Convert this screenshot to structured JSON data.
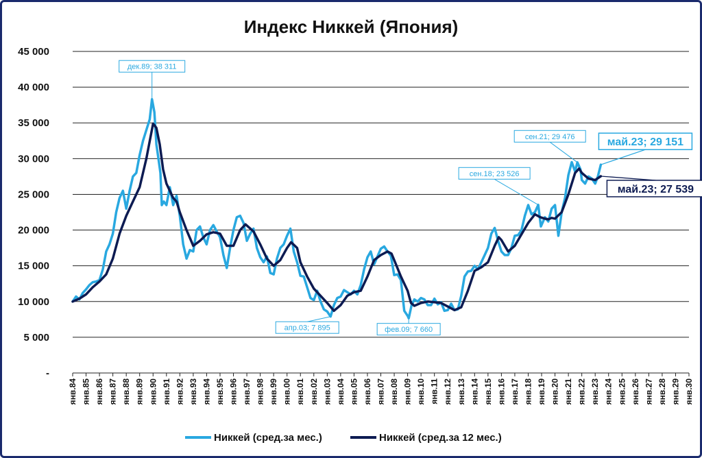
{
  "colors": {
    "monthly": "#29a8e0",
    "annual": "#0d1b52",
    "grid": "#222222",
    "frame": "#1a2a6c"
  },
  "chart_data": {
    "type": "line",
    "title": "Индекс Никкей (Япония)",
    "xlabel": "",
    "ylabel": "",
    "ylim": [
      0,
      45000
    ],
    "xlim": [
      1984,
      2030
    ],
    "yticks": [
      {
        "value": 0,
        "label": "-"
      },
      {
        "value": 5000,
        "label": "5 000"
      },
      {
        "value": 10000,
        "label": "10 000"
      },
      {
        "value": 15000,
        "label": "15 000"
      },
      {
        "value": 20000,
        "label": "20 000"
      },
      {
        "value": 25000,
        "label": "25 000"
      },
      {
        "value": 30000,
        "label": "30 000"
      },
      {
        "value": 35000,
        "label": "35 000"
      },
      {
        "value": 40000,
        "label": "40 000"
      },
      {
        "value": 45000,
        "label": "45 000"
      }
    ],
    "xticks": [
      "янв.84",
      "янв.85",
      "янв.86",
      "янв.87",
      "янв.88",
      "янв.89",
      "янв.90",
      "янв.91",
      "янв.92",
      "янв.93",
      "янв.94",
      "янв.95",
      "янв.96",
      "янв.97",
      "янв.98",
      "янв.99",
      "янв.00",
      "янв.01",
      "янв.02",
      "янв.03",
      "янв.04",
      "янв.05",
      "янв.06",
      "янв.07",
      "янв.08",
      "янв.09",
      "янв.10",
      "янв.11",
      "янв.12",
      "янв.13",
      "янв.14",
      "янв.15",
      "янв.16",
      "янв.17",
      "янв.18",
      "янв.19",
      "янв.20",
      "янв.21",
      "янв.22",
      "янв.23",
      "янв.24",
      "янв.25",
      "янв.26",
      "янв.27",
      "янв.28",
      "янв.29",
      "янв.30"
    ],
    "grid": true,
    "legend_position": "bottom",
    "series": [
      {
        "name": "Никкей (сред.за мес.)",
        "color": "#29a8e0",
        "points": [
          [
            1984.0,
            10000
          ],
          [
            1984.25,
            10700
          ],
          [
            1984.5,
            10300
          ],
          [
            1984.75,
            11200
          ],
          [
            1985.0,
            11700
          ],
          [
            1985.25,
            12300
          ],
          [
            1985.5,
            12700
          ],
          [
            1985.75,
            12800
          ],
          [
            1986.0,
            13000
          ],
          [
            1986.25,
            14500
          ],
          [
            1986.5,
            17000
          ],
          [
            1986.75,
            18000
          ],
          [
            1987.0,
            19500
          ],
          [
            1987.25,
            22500
          ],
          [
            1987.5,
            24500
          ],
          [
            1987.75,
            25500
          ],
          [
            1988.0,
            23000
          ],
          [
            1988.25,
            25500
          ],
          [
            1988.5,
            27500
          ],
          [
            1988.75,
            28000
          ],
          [
            1989.0,
            30500
          ],
          [
            1989.25,
            32500
          ],
          [
            1989.5,
            34000
          ],
          [
            1989.75,
            35500
          ],
          [
            1989.92,
            38311
          ],
          [
            1990.1,
            36500
          ],
          [
            1990.25,
            32000
          ],
          [
            1990.4,
            30000
          ],
          [
            1990.55,
            28000
          ],
          [
            1990.65,
            23500
          ],
          [
            1990.8,
            24000
          ],
          [
            1991.0,
            23500
          ],
          [
            1991.25,
            26000
          ],
          [
            1991.5,
            23500
          ],
          [
            1991.75,
            24800
          ],
          [
            1992.0,
            22000
          ],
          [
            1992.25,
            18000
          ],
          [
            1992.5,
            16000
          ],
          [
            1992.75,
            17200
          ],
          [
            1993.0,
            17000
          ],
          [
            1993.25,
            20000
          ],
          [
            1993.5,
            20500
          ],
          [
            1993.75,
            19000
          ],
          [
            1994.0,
            18000
          ],
          [
            1994.25,
            20000
          ],
          [
            1994.5,
            20700
          ],
          [
            1994.75,
            19800
          ],
          [
            1995.0,
            19000
          ],
          [
            1995.25,
            16500
          ],
          [
            1995.5,
            14700
          ],
          [
            1995.75,
            17500
          ],
          [
            1996.0,
            20000
          ],
          [
            1996.25,
            21800
          ],
          [
            1996.5,
            22000
          ],
          [
            1996.75,
            21000
          ],
          [
            1997.0,
            18500
          ],
          [
            1997.25,
            19500
          ],
          [
            1997.5,
            20200
          ],
          [
            1997.75,
            17500
          ],
          [
            1998.0,
            16200
          ],
          [
            1998.25,
            15500
          ],
          [
            1998.5,
            16300
          ],
          [
            1998.75,
            14000
          ],
          [
            1999.0,
            13800
          ],
          [
            1999.25,
            16000
          ],
          [
            1999.5,
            17500
          ],
          [
            1999.75,
            18000
          ],
          [
            2000.0,
            19200
          ],
          [
            2000.25,
            20200
          ],
          [
            2000.5,
            17000
          ],
          [
            2000.75,
            15500
          ],
          [
            2001.0,
            13600
          ],
          [
            2001.25,
            13500
          ],
          [
            2001.5,
            12000
          ],
          [
            2001.75,
            10500
          ],
          [
            2002.0,
            10200
          ],
          [
            2002.25,
            11500
          ],
          [
            2002.5,
            10000
          ],
          [
            2002.75,
            8900
          ],
          [
            2003.0,
            8600
          ],
          [
            2003.25,
            7895
          ],
          [
            2003.5,
            9500
          ],
          [
            2003.75,
            10500
          ],
          [
            2004.0,
            10700
          ],
          [
            2004.25,
            11600
          ],
          [
            2004.5,
            11300
          ],
          [
            2004.75,
            11000
          ],
          [
            2005.0,
            11500
          ],
          [
            2005.25,
            11000
          ],
          [
            2005.5,
            12300
          ],
          [
            2005.75,
            14500
          ],
          [
            2006.0,
            16200
          ],
          [
            2006.25,
            17000
          ],
          [
            2006.5,
            15200
          ],
          [
            2006.75,
            16300
          ],
          [
            2007.0,
            17400
          ],
          [
            2007.25,
            17700
          ],
          [
            2007.5,
            17000
          ],
          [
            2007.75,
            16400
          ],
          [
            2008.0,
            13700
          ],
          [
            2008.25,
            13800
          ],
          [
            2008.5,
            13000
          ],
          [
            2008.75,
            8700
          ],
          [
            2009.0,
            8000
          ],
          [
            2009.08,
            7660
          ],
          [
            2009.3,
            9500
          ],
          [
            2009.5,
            10300
          ],
          [
            2009.75,
            10000
          ],
          [
            2010.0,
            10500
          ],
          [
            2010.25,
            10300
          ],
          [
            2010.5,
            9500
          ],
          [
            2010.75,
            9500
          ],
          [
            2011.0,
            10400
          ],
          [
            2011.25,
            9600
          ],
          [
            2011.5,
            9900
          ],
          [
            2011.75,
            8700
          ],
          [
            2012.0,
            8800
          ],
          [
            2012.25,
            9700
          ],
          [
            2012.5,
            8800
          ],
          [
            2012.75,
            8900
          ],
          [
            2013.0,
            10800
          ],
          [
            2013.25,
            13500
          ],
          [
            2013.5,
            14200
          ],
          [
            2013.75,
            14300
          ],
          [
            2014.0,
            15000
          ],
          [
            2014.25,
            14500
          ],
          [
            2014.5,
            15500
          ],
          [
            2014.75,
            16500
          ],
          [
            2015.0,
            17500
          ],
          [
            2015.25,
            19500
          ],
          [
            2015.5,
            20300
          ],
          [
            2015.75,
            18500
          ],
          [
            2016.0,
            17000
          ],
          [
            2016.25,
            16500
          ],
          [
            2016.5,
            16500
          ],
          [
            2016.75,
            17500
          ],
          [
            2017.0,
            19200
          ],
          [
            2017.25,
            19300
          ],
          [
            2017.5,
            20000
          ],
          [
            2017.75,
            22000
          ],
          [
            2018.0,
            23500
          ],
          [
            2018.25,
            22200
          ],
          [
            2018.5,
            22500
          ],
          [
            2018.75,
            23526
          ],
          [
            2018.95,
            20500
          ],
          [
            2019.25,
            21800
          ],
          [
            2019.5,
            21200
          ],
          [
            2019.75,
            23000
          ],
          [
            2020.0,
            23500
          ],
          [
            2020.25,
            19200
          ],
          [
            2020.5,
            22500
          ],
          [
            2020.75,
            24500
          ],
          [
            2021.0,
            27700
          ],
          [
            2021.25,
            29500
          ],
          [
            2021.5,
            28200
          ],
          [
            2021.67,
            29476
          ],
          [
            2021.9,
            28500
          ],
          [
            2022.0,
            27000
          ],
          [
            2022.25,
            26500
          ],
          [
            2022.5,
            27500
          ],
          [
            2022.75,
            27200
          ],
          [
            2023.0,
            26500
          ],
          [
            2023.2,
            27500
          ],
          [
            2023.42,
            29151
          ]
        ]
      },
      {
        "name": "Никкей (сред.за 12 мес.)",
        "color": "#0d1b52",
        "points": [
          [
            1984.0,
            10000
          ],
          [
            1984.5,
            10400
          ],
          [
            1985.0,
            11000
          ],
          [
            1985.5,
            12000
          ],
          [
            1986.0,
            12800
          ],
          [
            1986.5,
            13800
          ],
          [
            1987.0,
            16000
          ],
          [
            1987.5,
            19500
          ],
          [
            1988.0,
            22000
          ],
          [
            1988.5,
            24000
          ],
          [
            1989.0,
            26000
          ],
          [
            1989.5,
            30000
          ],
          [
            1990.0,
            34900
          ],
          [
            1990.25,
            34300
          ],
          [
            1990.5,
            32000
          ],
          [
            1990.75,
            28500
          ],
          [
            1991.0,
            26500
          ],
          [
            1991.25,
            25500
          ],
          [
            1991.5,
            24500
          ],
          [
            1991.75,
            24000
          ],
          [
            1992.0,
            22500
          ],
          [
            1992.5,
            20000
          ],
          [
            1993.0,
            17800
          ],
          [
            1993.5,
            18500
          ],
          [
            1994.0,
            19400
          ],
          [
            1994.5,
            19700
          ],
          [
            1995.0,
            19500
          ],
          [
            1995.5,
            17800
          ],
          [
            1996.0,
            17800
          ],
          [
            1996.5,
            20000
          ],
          [
            1996.9,
            20800
          ],
          [
            1997.5,
            19800
          ],
          [
            1998.0,
            18000
          ],
          [
            1998.5,
            16000
          ],
          [
            1999.0,
            15000
          ],
          [
            1999.5,
            15800
          ],
          [
            2000.0,
            17500
          ],
          [
            2000.3,
            18300
          ],
          [
            2000.75,
            17500
          ],
          [
            2001.0,
            15500
          ],
          [
            2001.5,
            13500
          ],
          [
            2002.0,
            11800
          ],
          [
            2002.5,
            10800
          ],
          [
            2003.0,
            9800
          ],
          [
            2003.5,
            8700
          ],
          [
            2004.0,
            9500
          ],
          [
            2004.5,
            10800
          ],
          [
            2005.0,
            11300
          ],
          [
            2005.5,
            11500
          ],
          [
            2006.0,
            13500
          ],
          [
            2006.5,
            15800
          ],
          [
            2007.0,
            16500
          ],
          [
            2007.5,
            17000
          ],
          [
            2007.8,
            16700
          ],
          [
            2008.0,
            15800
          ],
          [
            2008.5,
            13500
          ],
          [
            2009.0,
            11500
          ],
          [
            2009.25,
            9800
          ],
          [
            2009.5,
            9400
          ],
          [
            2010.0,
            9800
          ],
          [
            2010.5,
            10000
          ],
          [
            2011.0,
            9900
          ],
          [
            2011.5,
            9800
          ],
          [
            2012.0,
            9300
          ],
          [
            2012.5,
            8800
          ],
          [
            2013.0,
            9200
          ],
          [
            2013.5,
            11500
          ],
          [
            2014.0,
            14300
          ],
          [
            2014.5,
            14800
          ],
          [
            2015.0,
            15500
          ],
          [
            2015.5,
            17800
          ],
          [
            2015.8,
            19000
          ],
          [
            2016.0,
            18600
          ],
          [
            2016.5,
            17000
          ],
          [
            2017.0,
            17800
          ],
          [
            2017.5,
            19400
          ],
          [
            2018.0,
            21000
          ],
          [
            2018.5,
            22200
          ],
          [
            2018.9,
            21800
          ],
          [
            2019.25,
            21600
          ],
          [
            2019.5,
            21500
          ],
          [
            2019.75,
            21700
          ],
          [
            2020.0,
            21600
          ],
          [
            2020.5,
            22500
          ],
          [
            2021.0,
            25000
          ],
          [
            2021.5,
            28000
          ],
          [
            2021.8,
            28600
          ],
          [
            2022.0,
            28000
          ],
          [
            2022.5,
            27200
          ],
          [
            2023.0,
            27000
          ],
          [
            2023.42,
            27539
          ]
        ]
      }
    ],
    "annotations": [
      {
        "label": "дек.89;  38 311",
        "series": 0,
        "x": 1989.92,
        "y": 38311,
        "style": "small"
      },
      {
        "label": "апр.03;  7 895",
        "series": 0,
        "x": 2003.25,
        "y": 7895,
        "style": "small"
      },
      {
        "label": "фев.09;  7 660",
        "series": 0,
        "x": 2009.08,
        "y": 7660,
        "style": "small"
      },
      {
        "label": "сен.18;  23 526",
        "series": 0,
        "x": 2018.75,
        "y": 23526,
        "style": "small"
      },
      {
        "label": "сен.21;  29 476",
        "series": 0,
        "x": 2021.67,
        "y": 29476,
        "style": "small"
      },
      {
        "label": "май.23;  29 151",
        "series": 0,
        "x": 2023.42,
        "y": 29151,
        "style": "big"
      },
      {
        "label": "май.23;  27 539",
        "series": 1,
        "x": 2023.42,
        "y": 27539,
        "style": "big"
      }
    ]
  }
}
